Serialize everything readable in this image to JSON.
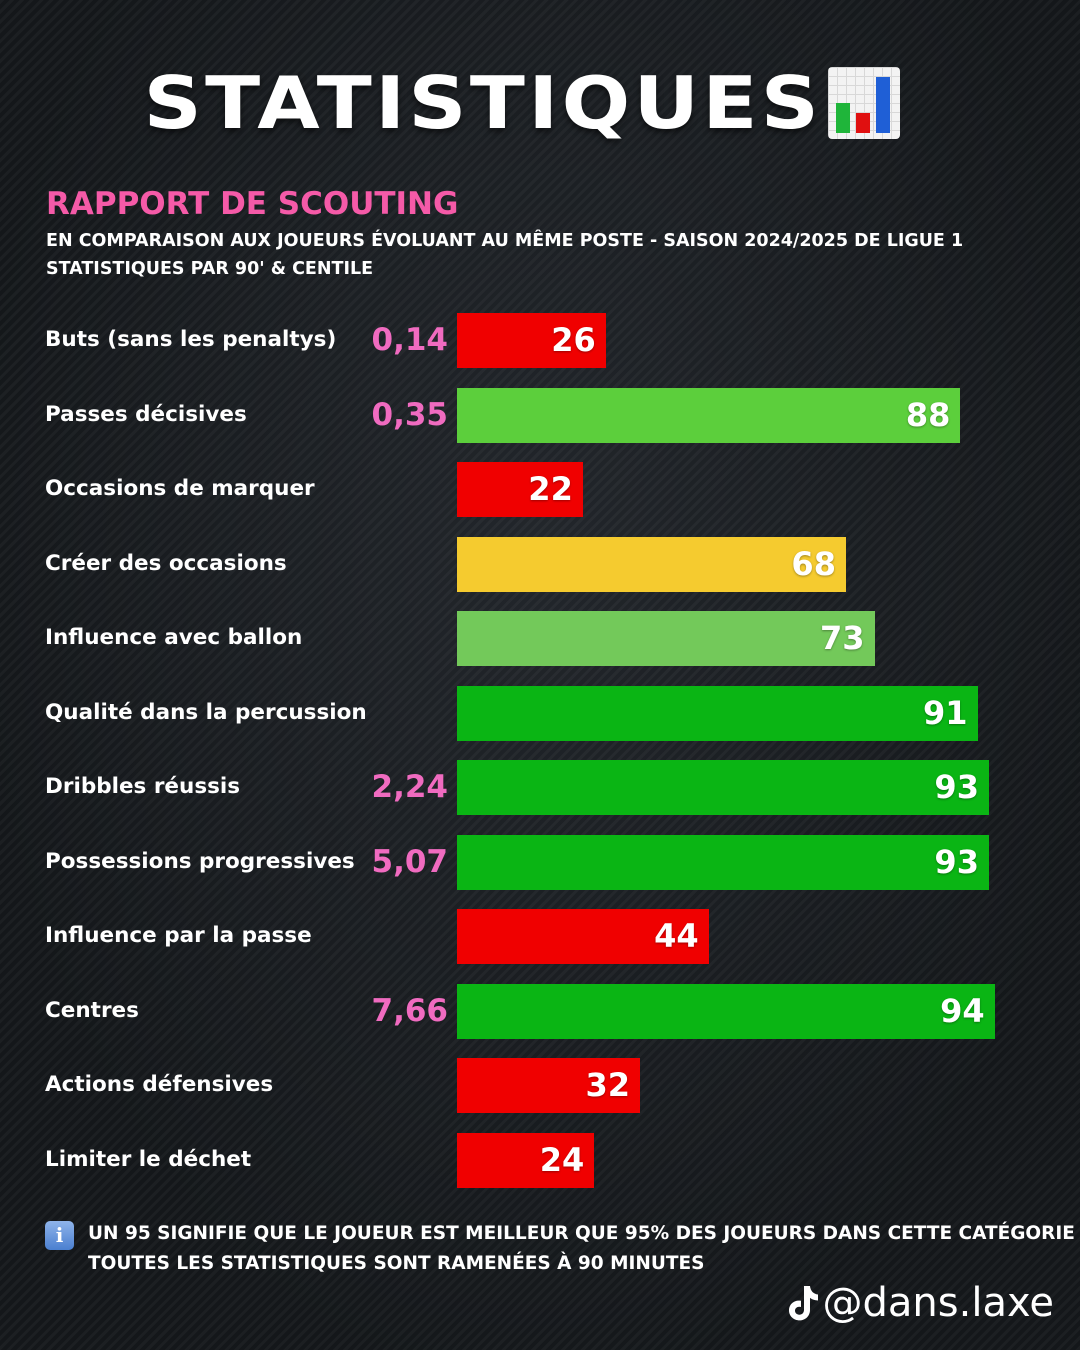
{
  "header": {
    "title": "STATISTIQUES",
    "title_icon": "bar-chart-emoji-icon",
    "subtitle": "RAPPORT DE SCOUTING",
    "description_line1": "EN COMPARAISON AUX JOUEURS ÉVOLUANT AU MÊME POSTE - SAISON 2024/2025 DE LIGUE 1",
    "description_line2": "STATISTIQUES PAR 90' & CENTILE"
  },
  "chart_data": {
    "type": "bar",
    "orientation": "horizontal",
    "categories": [
      "Buts (sans les penaltys)",
      "Passes décisives",
      "Occasions de marquer",
      "Créer des occasions",
      "Influence avec ballon",
      "Qualité dans la percussion",
      "Dribbles réussis",
      "Possessions progressives",
      "Influence par la passe",
      "Centres",
      "Actions défensives",
      "Limiter le déchet"
    ],
    "values": [
      26,
      88,
      22,
      68,
      73,
      91,
      93,
      93,
      44,
      94,
      32,
      24
    ],
    "per90_values": [
      "0,14",
      "0,35",
      "",
      "",
      "",
      "",
      "2,24",
      "5,07",
      "",
      "7,66",
      "",
      ""
    ],
    "bar_colors": [
      "#f00000",
      "#5ccf3c",
      "#f00000",
      "#f5cb2f",
      "#73c95a",
      "#0ab514",
      "#0ab514",
      "#0ab514",
      "#f00000",
      "#0ab514",
      "#f00000",
      "#f00000"
    ],
    "xlim": [
      0,
      100
    ],
    "grid": false,
    "legend": "none"
  },
  "footnote": {
    "icon": "info-icon",
    "info_glyph": "i",
    "line1": "UN 95 SIGNIFIE QUE LE JOUEUR EST MEILLEUR QUE 95% DES JOUEURS DANS CETTE CATÉGORIE",
    "line2": "TOUTES LES STATISTIQUES SONT RAMENÉES À 90 MINUTES"
  },
  "watermark": {
    "icon": "tiktok-icon",
    "handle": "@dans.laxe"
  },
  "colors": {
    "subtitle": "#f55aa8",
    "per90_value": "#f06bc0",
    "red": "#f00000",
    "green": "#0ab514",
    "light_green": "#73c95a",
    "yellow": "#f5cb2f"
  }
}
